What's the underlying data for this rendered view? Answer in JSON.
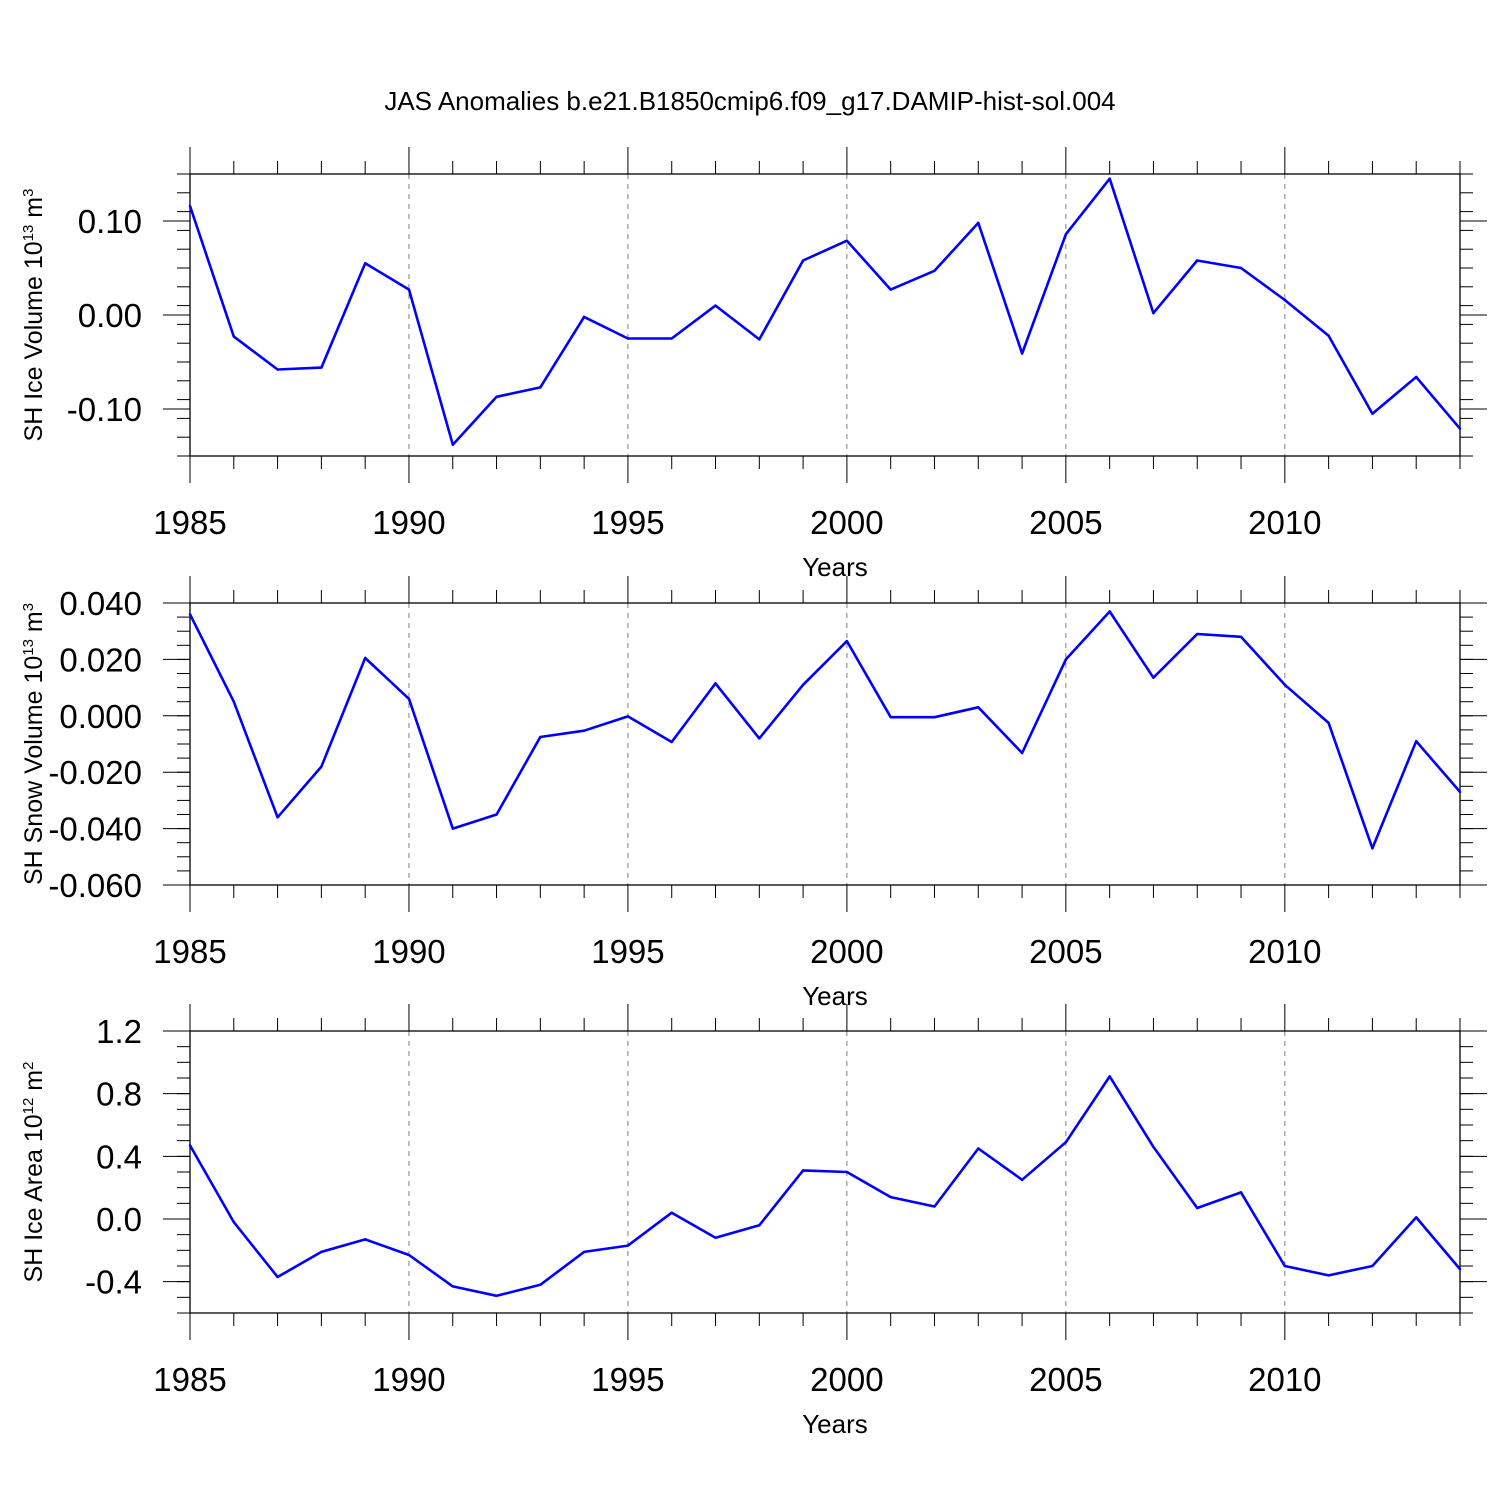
{
  "figure": {
    "title": "JAS Anomalies b.e21.B1850cmip6.f09_g17.DAMIP-hist-sol.004",
    "line_color": "#0000ff",
    "axis_color": "#000000",
    "grid_color": "#808080"
  },
  "chart_data": [
    {
      "type": "line",
      "ylabel": {
        "prefix": "SH Ice Volume 10",
        "exponent": "13",
        "unit": " m",
        "unit_exponent": "3"
      },
      "xlabel": "Years",
      "xlim": [
        1985,
        2014
      ],
      "ylim": [
        -0.15,
        0.15
      ],
      "x_ticks": [
        1985,
        1990,
        1995,
        2000,
        2005,
        2010
      ],
      "x_tick_labels": [
        "1985",
        "1990",
        "1995",
        "2000",
        "2005",
        "2010"
      ],
      "y_ticks": [
        -0.1,
        0.0,
        0.1
      ],
      "y_tick_labels": [
        "-0.10",
        "0.00",
        "0.10"
      ],
      "y_minor_step": 0.02,
      "grid": "vertical dashed at major x ticks",
      "series": [
        {
          "name": "SH Ice Volume",
          "x": [
            1985,
            1986,
            1987,
            1988,
            1989,
            1990,
            1991,
            1992,
            1993,
            1994,
            1995,
            1996,
            1997,
            1998,
            1999,
            2000,
            2001,
            2002,
            2003,
            2004,
            2005,
            2006,
            2007,
            2008,
            2009,
            2010,
            2011,
            2012,
            2013,
            2014
          ],
          "values": [
            0.116,
            -0.023,
            -0.058,
            -0.056,
            0.055,
            0.027,
            -0.138,
            -0.087,
            -0.077,
            -0.002,
            -0.025,
            -0.025,
            0.01,
            -0.026,
            0.058,
            0.079,
            0.027,
            0.047,
            0.098,
            -0.041,
            0.086,
            0.145,
            0.002,
            0.058,
            0.05,
            0.016,
            -0.022,
            -0.105,
            -0.066,
            -0.121
          ]
        }
      ]
    },
    {
      "type": "line",
      "ylabel": {
        "prefix": "SH Snow Volume 10",
        "exponent": "13",
        "unit": " m",
        "unit_exponent": "3"
      },
      "xlabel": "Years",
      "xlim": [
        1985,
        2014
      ],
      "ylim": [
        -0.06,
        0.04
      ],
      "x_ticks": [
        1985,
        1990,
        1995,
        2000,
        2005,
        2010
      ],
      "x_tick_labels": [
        "1985",
        "1990",
        "1995",
        "2000",
        "2005",
        "2010"
      ],
      "y_ticks": [
        -0.06,
        -0.04,
        -0.02,
        0.0,
        0.02,
        0.04
      ],
      "y_tick_labels": [
        "-0.060",
        "-0.040",
        "-0.020",
        "0.000",
        "0.020",
        "0.040"
      ],
      "y_minor_step": 0.005,
      "grid": "vertical dashed at major x ticks",
      "series": [
        {
          "name": "SH Snow Volume",
          "x": [
            1985,
            1986,
            1987,
            1988,
            1989,
            1990,
            1991,
            1992,
            1993,
            1994,
            1995,
            1996,
            1997,
            1998,
            1999,
            2000,
            2001,
            2002,
            2003,
            2004,
            2005,
            2006,
            2007,
            2008,
            2009,
            2010,
            2011,
            2012,
            2013,
            2014
          ],
          "values": [
            0.036,
            0.005,
            -0.036,
            -0.018,
            0.0205,
            0.006,
            -0.04,
            -0.035,
            -0.0075,
            -0.0053,
            -0.0002,
            -0.0093,
            0.0115,
            -0.008,
            0.011,
            0.0265,
            -0.0005,
            -0.0005,
            0.003,
            -0.0132,
            0.02,
            0.037,
            0.0135,
            0.029,
            0.028,
            0.011,
            -0.0025,
            -0.047,
            -0.009,
            -0.027
          ]
        }
      ]
    },
    {
      "type": "line",
      "ylabel": {
        "prefix": "SH Ice Area 10",
        "exponent": "12",
        "unit": " m",
        "unit_exponent": "2"
      },
      "xlabel": "Years",
      "xlim": [
        1985,
        2014
      ],
      "ylim": [
        -0.6,
        1.2
      ],
      "x_ticks": [
        1985,
        1990,
        1995,
        2000,
        2005,
        2010
      ],
      "x_tick_labels": [
        "1985",
        "1990",
        "1995",
        "2000",
        "2005",
        "2010"
      ],
      "y_ticks": [
        -0.4,
        0.0,
        0.4,
        0.8,
        1.2
      ],
      "y_tick_labels": [
        "-0.4",
        "0.0",
        "0.4",
        "0.8",
        "1.2"
      ],
      "y_minor_step": 0.1,
      "grid": "vertical dashed at major x ticks",
      "series": [
        {
          "name": "SH Ice Area",
          "x": [
            1985,
            1986,
            1987,
            1988,
            1989,
            1990,
            1991,
            1992,
            1993,
            1994,
            1995,
            1996,
            1997,
            1998,
            1999,
            2000,
            2001,
            2002,
            2003,
            2004,
            2005,
            2006,
            2007,
            2008,
            2009,
            2010,
            2011,
            2012,
            2013,
            2014
          ],
          "values": [
            0.47,
            -0.02,
            -0.37,
            -0.21,
            -0.13,
            -0.23,
            -0.43,
            -0.49,
            -0.42,
            -0.21,
            -0.17,
            0.04,
            -0.12,
            -0.04,
            0.31,
            0.3,
            0.14,
            0.08,
            0.45,
            0.25,
            0.49,
            0.91,
            0.46,
            0.07,
            0.17,
            -0.3,
            -0.36,
            -0.3,
            0.01,
            -0.32
          ]
        }
      ]
    }
  ]
}
